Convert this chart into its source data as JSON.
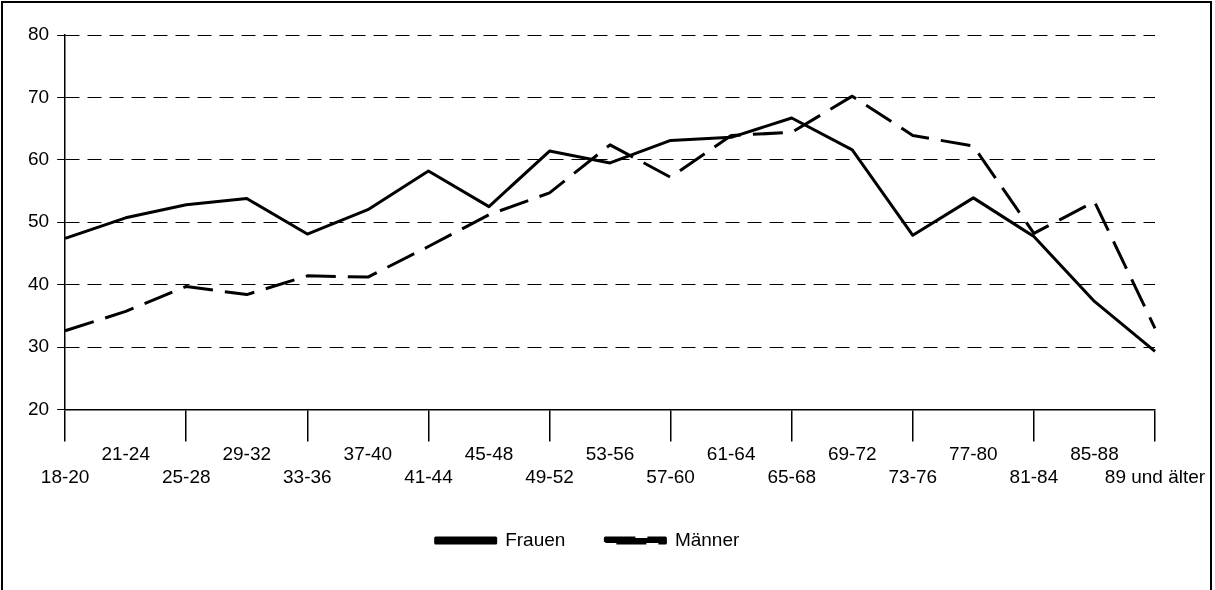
{
  "chart_data": {
    "type": "line",
    "categories": [
      "18-20",
      "21-24",
      "25-28",
      "29-32",
      "33-36",
      "37-40",
      "41-44",
      "45-48",
      "49-52",
      "53-56",
      "57-60",
      "61-64",
      "65-68",
      "69-72",
      "73-76",
      "77-80",
      "81-84",
      "85-88",
      "89 und älter"
    ],
    "series": [
      {
        "name": "Frauen",
        "color": "#000000",
        "line_style": "solid",
        "values": [
          47.4,
          50.7,
          52.8,
          53.8,
          48.1,
          52.0,
          58.2,
          52.5,
          61.4,
          59.5,
          63.1,
          63.6,
          66.7,
          61.6,
          47.9,
          53.9,
          47.7,
          37.3,
          29.3
        ]
      },
      {
        "name": "Männer",
        "color": "#000000",
        "line_style": "dashed",
        "values": [
          32.6,
          35.7,
          39.7,
          38.4,
          41.4,
          41.2,
          46.1,
          51.2,
          54.7,
          62.4,
          57.2,
          63.9,
          64.4,
          70.2,
          63.9,
          62.2,
          48.2,
          53.3,
          33.0
        ]
      }
    ],
    "ylim": [
      20,
      80
    ],
    "yticks": [
      20,
      30,
      40,
      50,
      60,
      70,
      80
    ],
    "grid": "y",
    "legend": "bottom",
    "marker": "none"
  }
}
